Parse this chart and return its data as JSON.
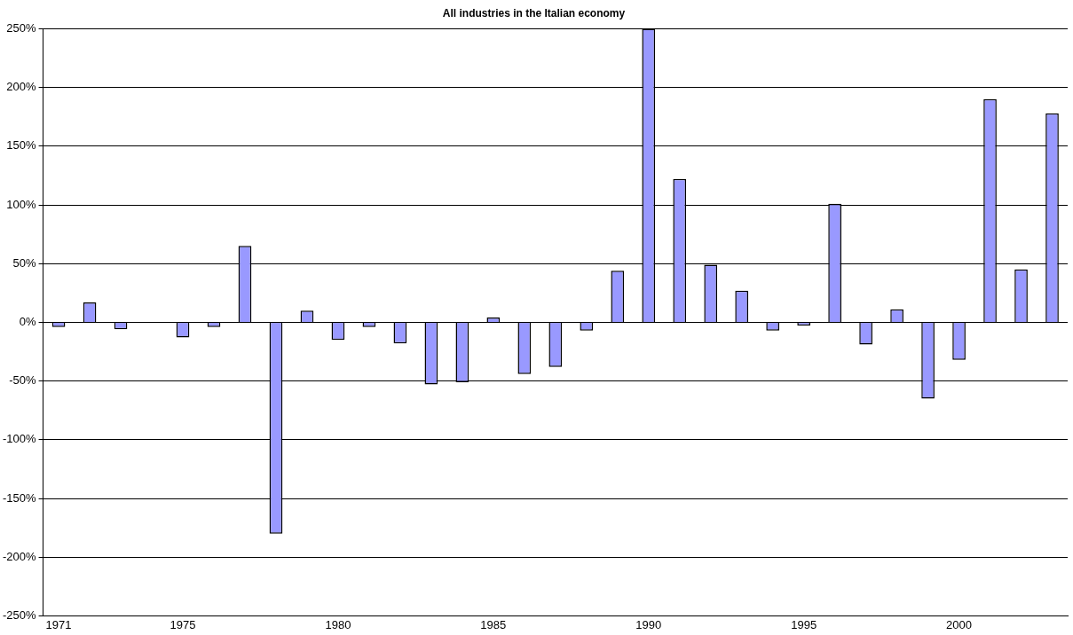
{
  "chart_data": {
    "type": "bar",
    "title": "All industries in the Italian economy",
    "categories": [
      "1971",
      null,
      null,
      null,
      "1975",
      null,
      null,
      null,
      null,
      "1980",
      null,
      null,
      null,
      null,
      "1985",
      null,
      null,
      null,
      null,
      "1990",
      null,
      null,
      null,
      null,
      "1995",
      null,
      null,
      null,
      null,
      "2000",
      null,
      null,
      null
    ],
    "values": [
      -4,
      17,
      -6,
      0,
      -13,
      -4,
      65,
      -180,
      10,
      -15,
      -4,
      -18,
      -53,
      -51,
      4,
      -44,
      -38,
      -7,
      44,
      250,
      122,
      49,
      27,
      -7,
      -3,
      101,
      -19,
      11,
      -65,
      -32,
      190,
      45,
      178
    ],
    "color": "#9999ff",
    "ylim": [
      -250,
      250
    ],
    "yticks": [
      {
        "value": -250,
        "label": "-250%"
      },
      {
        "value": -200,
        "label": "-200%"
      },
      {
        "value": -150,
        "label": "-150%"
      },
      {
        "value": -100,
        "label": "-100%"
      },
      {
        "value": -50,
        "label": "-50%"
      },
      {
        "value": 0,
        "label": "0%"
      },
      {
        "value": 50,
        "label": "50%"
      },
      {
        "value": 100,
        "label": "100%"
      },
      {
        "value": 150,
        "label": "150%"
      },
      {
        "value": 200,
        "label": "200%"
      },
      {
        "value": 250,
        "label": "250%"
      }
    ],
    "grid": "y",
    "legend": false
  }
}
